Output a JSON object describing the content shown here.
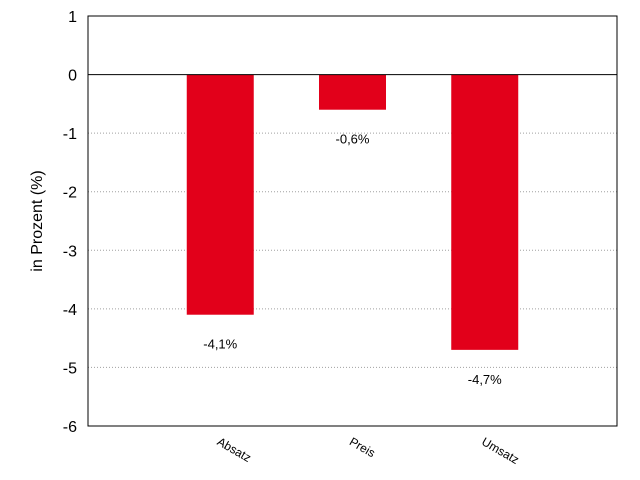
{
  "chart_data": {
    "type": "bar",
    "title": "",
    "xlabel": "",
    "ylabel": "in Prozent (%)",
    "categories": [
      "Absatz",
      "Preis",
      "Umsatz"
    ],
    "values": [
      -4.1,
      -0.6,
      -4.7
    ],
    "data_labels": [
      "-4,1%",
      "-0,6%",
      "-4,7%"
    ],
    "ylim": [
      -6,
      1
    ],
    "yticks": [
      1,
      0,
      -1,
      -2,
      -3,
      -4,
      -5,
      -6
    ],
    "ytick_labels": [
      "1",
      "0",
      "-1",
      "-2",
      "-3",
      "-4",
      "-5",
      "-6"
    ],
    "bar_color": "#e2001a",
    "grid": "horizontal dotted",
    "legend": "none"
  }
}
